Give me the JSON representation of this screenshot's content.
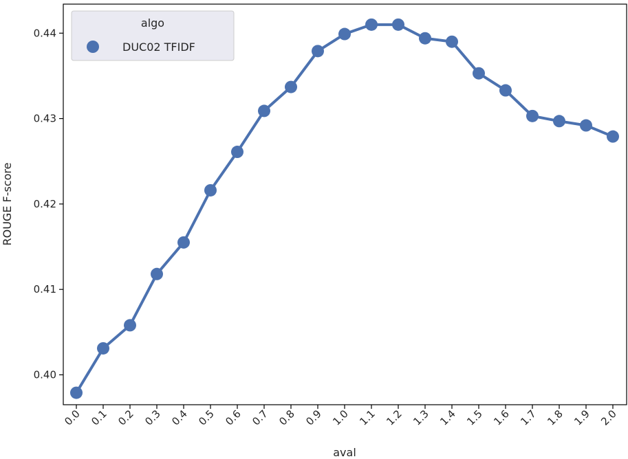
{
  "chart_data": {
    "type": "line",
    "xlabel": "aval",
    "ylabel": "ROUGE F-score",
    "categories": [
      "0.0",
      "0.1",
      "0.2",
      "0.3",
      "0.4",
      "0.5",
      "0.6",
      "0.7",
      "0.8",
      "0.9",
      "1.0",
      "1.1",
      "1.2",
      "1.3",
      "1.4",
      "1.5",
      "1.6",
      "1.7",
      "1.8",
      "1.9",
      "2.0"
    ],
    "yticks": [
      "0.40",
      "0.41",
      "0.42",
      "0.43",
      "0.44"
    ],
    "ylim": [
      0.3965,
      0.4434
    ],
    "legend": {
      "title": "algo",
      "placement": "top-left"
    },
    "series": [
      {
        "name": "DUC02 TFIDF",
        "color": "#4c72b0",
        "values": [
          0.3979,
          0.4031,
          0.4058,
          0.4118,
          0.4155,
          0.4216,
          0.4261,
          0.4309,
          0.4337,
          0.4379,
          0.4399,
          0.441,
          0.441,
          0.4394,
          0.439,
          0.4353,
          0.4333,
          0.4303,
          0.4297,
          0.4292,
          0.4279
        ]
      }
    ]
  }
}
